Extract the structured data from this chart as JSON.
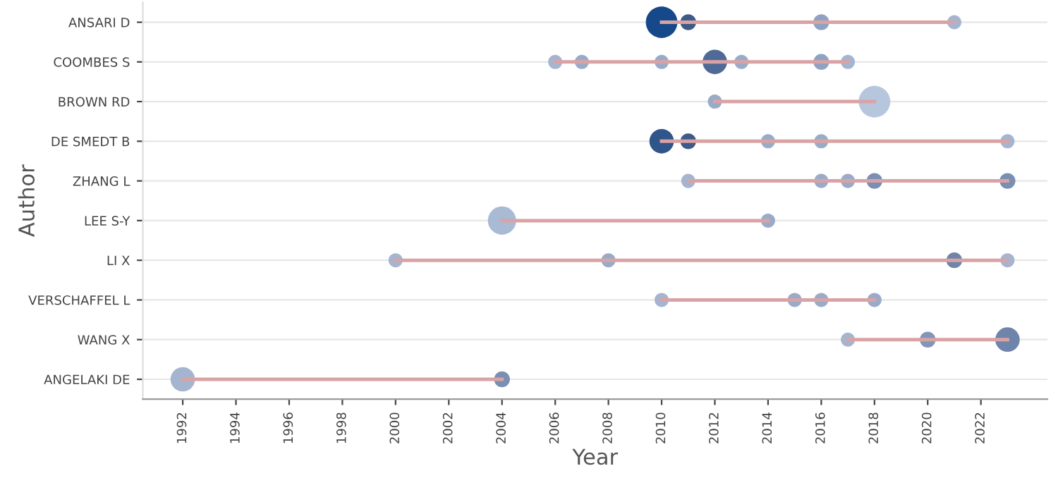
{
  "chart_data": {
    "type": "bubble",
    "orientation": "horizontal",
    "xlabel": "Year",
    "ylabel": "Author",
    "categories": [
      "ANSARI D",
      "COOMBES S",
      "BROWN RD",
      "DE SMEDT B",
      "ZHANG L",
      "LEE S-Y",
      "LI X",
      "VERSCHAFFEL L",
      "WANG X",
      "ANGELAKI DE"
    ],
    "xlim": [
      1990.5,
      2024.5
    ],
    "xticks": [
      1992,
      1994,
      1996,
      1998,
      2000,
      2002,
      2004,
      2006,
      2008,
      2010,
      2012,
      2014,
      2016,
      2018,
      2020,
      2022
    ],
    "grid": "y",
    "series": [
      {
        "x": [
          "ANSARI D",
          "ANSARI D",
          "ANSARI D",
          "ANSARI D"
        ],
        "values": [
          2010,
          2011,
          2016,
          2021
        ],
        "sizes": [
          1,
          0.25,
          0.25,
          0.2
        ],
        "colors": [
          "#15498a",
          "#3e5a86",
          "#8ea2c2",
          "#a5b5d0"
        ]
      },
      {
        "x": [
          "COOMBES S",
          "COOMBES S",
          "COOMBES S",
          "COOMBES S",
          "COOMBES S",
          "COOMBES S",
          "COOMBES S"
        ],
        "values": [
          2006,
          2007,
          2010,
          2012,
          2013,
          2016,
          2017
        ],
        "sizes": [
          0.2,
          0.2,
          0.2,
          0.6,
          0.2,
          0.25,
          0.2
        ],
        "colors": [
          "#a5b5d0",
          "#9aabc8",
          "#9aabc8",
          "#4f6a96",
          "#9aabc8",
          "#8ea2c2",
          "#a5b5d0"
        ]
      },
      {
        "x": [
          "BROWN RD",
          "BROWN RD"
        ],
        "values": [
          2012,
          2018
        ],
        "sizes": [
          0.2,
          1
        ],
        "colors": [
          "#9aabc8",
          "#b6c6dd"
        ]
      },
      {
        "x": [
          "DE SMEDT B",
          "DE SMEDT B",
          "DE SMEDT B",
          "DE SMEDT B",
          "DE SMEDT B"
        ],
        "values": [
          2010,
          2011,
          2014,
          2016,
          2023
        ],
        "sizes": [
          0.6,
          0.25,
          0.2,
          0.2,
          0.2
        ],
        "colors": [
          "#2f558a",
          "#3e5a86",
          "#9aabc8",
          "#9aabc8",
          "#a5b5d0"
        ]
      },
      {
        "x": [
          "ZHANG L",
          "ZHANG L",
          "ZHANG L",
          "ZHANG L",
          "ZHANG L"
        ],
        "values": [
          2011,
          2016,
          2017,
          2018,
          2023
        ],
        "sizes": [
          0.2,
          0.2,
          0.2,
          0.25,
          0.25
        ],
        "colors": [
          "#a5b5d0",
          "#9aabc8",
          "#9aabc8",
          "#7a8fb2",
          "#7a8fb2"
        ]
      },
      {
        "x": [
          "LEE S-Y",
          "LEE S-Y"
        ],
        "values": [
          2004,
          2014
        ],
        "sizes": [
          0.8,
          0.2
        ],
        "colors": [
          "#a9bad5",
          "#9aabc8"
        ]
      },
      {
        "x": [
          "LI X",
          "LI X",
          "LI X",
          "LI X"
        ],
        "values": [
          2000,
          2008,
          2021,
          2023
        ],
        "sizes": [
          0.2,
          0.2,
          0.25,
          0.2
        ],
        "colors": [
          "#a5b5d0",
          "#9aabc8",
          "#6f84a8",
          "#a5b5d0"
        ]
      },
      {
        "x": [
          "VERSCHAFFEL L",
          "VERSCHAFFEL L",
          "VERSCHAFFEL L",
          "VERSCHAFFEL L"
        ],
        "values": [
          2010,
          2015,
          2016,
          2018
        ],
        "sizes": [
          0.2,
          0.2,
          0.2,
          0.2
        ],
        "colors": [
          "#a5b5d0",
          "#9aabc8",
          "#9aabc8",
          "#9aabc8"
        ]
      },
      {
        "x": [
          "WANG X",
          "WANG X",
          "WANG X"
        ],
        "values": [
          2017,
          2020,
          2023
        ],
        "sizes": [
          0.2,
          0.25,
          0.6
        ],
        "colors": [
          "#a5b5d0",
          "#8196b8",
          "#6f84ab"
        ]
      },
      {
        "x": [
          "ANGELAKI DE",
          "ANGELAKI DE"
        ],
        "values": [
          1992,
          2004
        ],
        "sizes": [
          0.6,
          0.25
        ],
        "colors": [
          "#a5b5d0",
          "#7a8fb2"
        ]
      },
      {
        "type": "line",
        "color": "#d9a3a6",
        "x": [
          "ANSARI D",
          "ANSARI D"
        ],
        "values": [
          2010,
          2021
        ]
      },
      {
        "type": "line",
        "color": "#d9a3a6",
        "x": [
          "COOMBES S",
          "COOMBES S"
        ],
        "values": [
          2006,
          2017
        ]
      },
      {
        "type": "line",
        "color": "#d9a3a6",
        "x": [
          "BROWN RD",
          "BROWN RD"
        ],
        "values": [
          2012,
          2018
        ]
      },
      {
        "type": "line",
        "color": "#d9a3a6",
        "x": [
          "DE SMEDT B",
          "DE SMEDT B"
        ],
        "values": [
          2010,
          2023
        ]
      },
      {
        "type": "line",
        "color": "#d9a3a6",
        "x": [
          "ZHANG L",
          "ZHANG L"
        ],
        "values": [
          2011,
          2023
        ]
      },
      {
        "type": "line",
        "color": "#d9a3a6",
        "x": [
          "LEE S-Y",
          "LEE S-Y"
        ],
        "values": [
          2004,
          2014
        ]
      },
      {
        "type": "line",
        "color": "#d9a3a6",
        "x": [
          "LI X",
          "LI X"
        ],
        "values": [
          2000,
          2023
        ]
      },
      {
        "type": "line",
        "color": "#d9a3a6",
        "x": [
          "VERSCHAFFEL L",
          "VERSCHAFFEL L"
        ],
        "values": [
          2010,
          2018
        ]
      },
      {
        "type": "line",
        "color": "#d9a3a6",
        "x": [
          "WANG X",
          "WANG X"
        ],
        "values": [
          2017,
          2023
        ]
      },
      {
        "type": "line",
        "color": "#d9a3a6",
        "x": [
          "ANGELAKI DE",
          "ANGELAKI DE"
        ],
        "values": [
          1992,
          2004
        ]
      }
    ]
  }
}
